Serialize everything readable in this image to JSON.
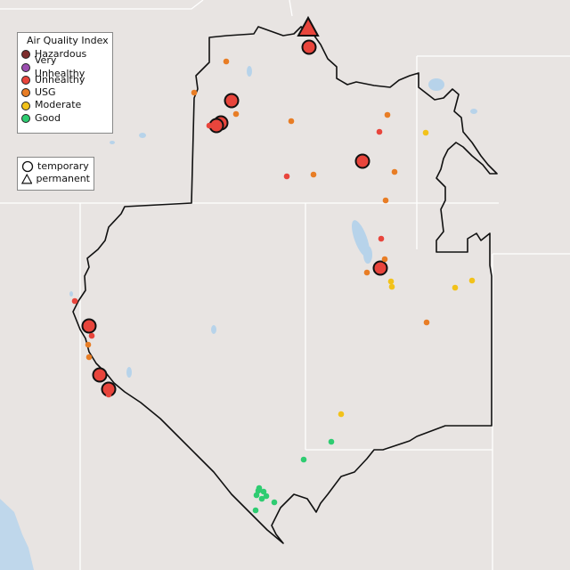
{
  "legend": {
    "title": "Air Quality Index",
    "categories": [
      {
        "label": "Hazardous",
        "color": "#7e2d2d"
      },
      {
        "label": "Very Unhealthy",
        "color": "#9b4fb0"
      },
      {
        "label": "Unhealthy",
        "color": "#e8453c"
      },
      {
        "label": "USG",
        "color": "#e87d25"
      },
      {
        "label": "Moderate",
        "color": "#f2c21a"
      },
      {
        "label": "Good",
        "color": "#2ecc71"
      }
    ],
    "monitor_types": [
      {
        "label": "temporary",
        "shape": "circle"
      },
      {
        "label": "permanent",
        "shape": "triangle"
      }
    ]
  },
  "map": {
    "land_color": "#e8e4e2",
    "water_color": "#b7d3ea",
    "ocean_color": "#bfd7eb",
    "boundary_color": "#111111",
    "state_line_color": "#ffffff"
  }
}
